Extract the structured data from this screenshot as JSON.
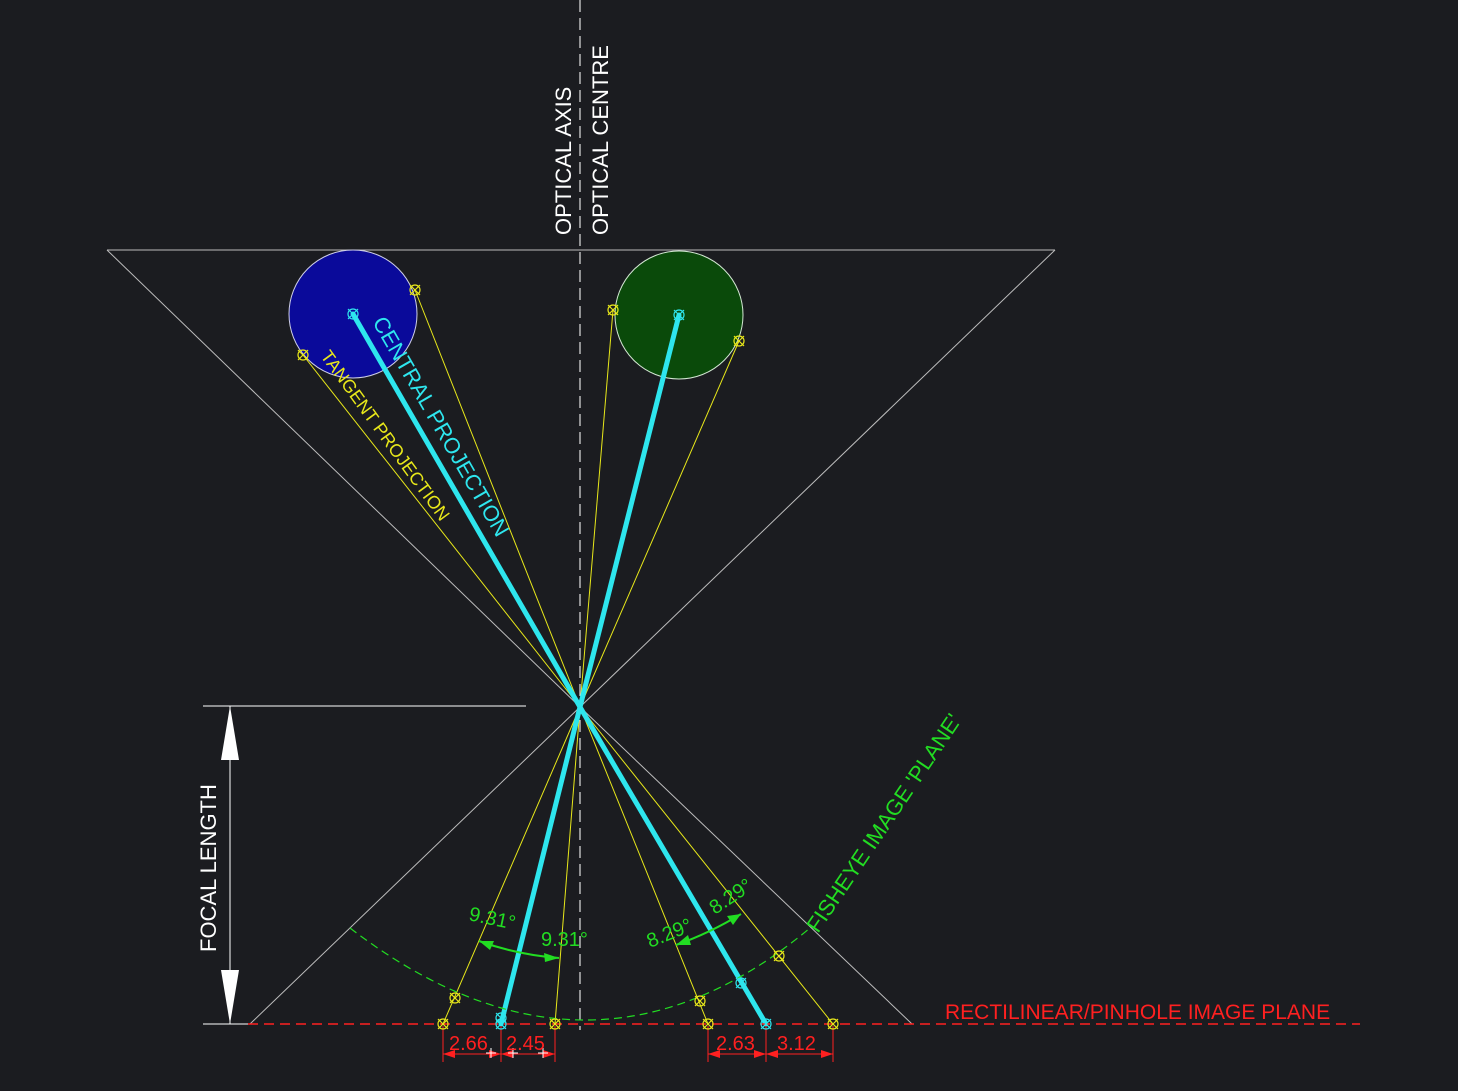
{
  "labels": {
    "optical_axis": "OPTICAL AXIS",
    "optical_centre": "OPTICAL CENTRE",
    "central_projection": "CENTRAL PROJECTION",
    "tangent_projection": "TANGENT PROJECTION",
    "fisheye_plane": "FISHEYE IMAGE 'PLANE'",
    "rectilinear_plane": "RECTILINEAR/PINHOLE IMAGE PLANE",
    "focal_length": "FOCAL LENGTH"
  },
  "angles": {
    "left_a": "9.31°",
    "left_b": "9.31°",
    "right_a": "8.29°",
    "right_b": "8.29°"
  },
  "dimensions": {
    "left_a": "2.66",
    "left_b": "2.45",
    "right_a": "2.63",
    "right_b": "3.12"
  },
  "colors": {
    "background": "#1b1c20",
    "blue_object": "#0a0a9a",
    "green_object": "#0a4a0a",
    "central_ray": "#2ee6ee",
    "tangent_ray": "#e8e81a",
    "fisheye_arc": "#22dd22",
    "image_plane": "#ff2020",
    "guide": "#c8c8c8"
  }
}
